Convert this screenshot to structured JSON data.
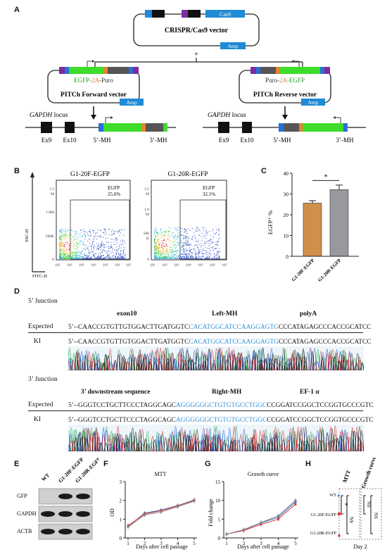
{
  "panel_labels": {
    "A": "A",
    "B": "B",
    "C": "C",
    "D": "D",
    "E": "E",
    "F": "F",
    "G": "G",
    "H": "H"
  },
  "panelA": {
    "cas9_label": "Cas9",
    "crispr_vector_label": "CRISPR/Cas9 vector",
    "amp_label": "Amp",
    "plus": "+",
    "fwd_cassette": {
      "part1": "EGFP-",
      "part2": "2A",
      "part3": "-Puro"
    },
    "rev_cassette": {
      "part1": "Puro-",
      "part2": "2A",
      "part3": "-EGFP"
    },
    "fwd_vector_label": "PITCh Forward vector",
    "rev_vector_label": "PITCh Reverse vector",
    "locus_gene": "GAPDH",
    "locus_word": " locus",
    "ex9": "Ex9",
    "ex10": "Ex10",
    "mh5": "5’-MH",
    "mh3": "3’-MH",
    "colors": {
      "cas9": "#1f8ad6",
      "green": "#3ddc2a",
      "orange": "#f07d2a",
      "purple": "#7e2aa0",
      "gray": "#555555",
      "blue_block": "#2a6fd6"
    }
  },
  "panelB": {
    "plot1_title": "G1-20F-EGFP",
    "plot2_title": "G1-20R-EGFP",
    "gate_label": "EGFP",
    "plot1_pct": "25.6%",
    "plot2_pct": "32.1%",
    "y_axis": "SSC-H",
    "x_axis": "FITC-H",
    "y_ticks": [
      "1.5",
      "M",
      "1.0M",
      "500K",
      "0"
    ],
    "y2_ticks": [
      "1.5",
      "M",
      "1.0",
      "M",
      "500",
      "K",
      "0"
    ],
    "x_ticks": [
      "10¹",
      "10²",
      "10³",
      "10⁴",
      "10⁵",
      "10⁶",
      "10⁷"
    ]
  },
  "chart_data": {
    "type": "bar",
    "categories": [
      "G1-20F-EGFP",
      "G1-20R-EGFP"
    ],
    "values": [
      25.6,
      32.1
    ],
    "errors": [
      1.2,
      2.2
    ],
    "ylabel": "EGFP⁺ %",
    "ylim": [
      0,
      40
    ],
    "yticks": [
      "0",
      "10",
      "20",
      "30",
      "40"
    ],
    "significance": "*",
    "colors": [
      "#d08f4a",
      "#98989e"
    ]
  },
  "panelD": {
    "junction5_label": "5’ Junction",
    "junction3_label": "3’ Junction",
    "expected": "Expected",
    "ki": "KI",
    "j5_headers": {
      "exon10": "exon10",
      "leftmh": "Left-MH",
      "polya": "polyA"
    },
    "j3_headers": {
      "downstream": "3’ downstream sequence",
      "rightmh": "Right-MH",
      "ef1a": "EF-1 α"
    },
    "j5_seq": {
      "pre": "5’--CAACCGTGTTGTGGACTTGATGGTC",
      "mh": "CACATGGCATCCAAGGAGTG",
      "post": "CCCATAGAGCCCACCGCATCC"
    },
    "j3_seq": {
      "pre": "5’--GGGTCCTGCTTCCCTAGGCAGC",
      "mh": "AGGGGGGCTGTGTGCCTGGC",
      "post": "CCGGATCCGGCTCCGGTGCCCGTC"
    }
  },
  "panelE": {
    "col_labels": [
      "WT",
      "G1-20F-EGFP",
      "G1-20R-EGFP"
    ],
    "row_labels": [
      "GFP",
      "GAPDH",
      "ACTB"
    ]
  },
  "panelF": {
    "title": "MTT",
    "ylabel": "OD",
    "xlabel": "Days after cell passage",
    "x": [
      1,
      2,
      3,
      4,
      5
    ],
    "ylim": [
      0,
      3
    ],
    "yticks": [
      "0",
      "1",
      "2",
      "3"
    ],
    "series": [
      {
        "values": [
          0.62,
          1.32,
          1.48,
          1.72,
          2.02
        ],
        "color": "#1e6fd0"
      },
      {
        "values": [
          0.65,
          1.28,
          1.45,
          1.7,
          2.0
        ],
        "color": "#e03030"
      },
      {
        "values": [
          0.58,
          1.22,
          1.38,
          1.66,
          1.96
        ],
        "color": "#888888"
      }
    ]
  },
  "panelG": {
    "title": "Growth curve",
    "ylabel": "Fold change",
    "xlabel": "Days after cell passage",
    "x": [
      1,
      2,
      3,
      4,
      5
    ],
    "ylim": [
      0,
      15
    ],
    "yticks": [
      "0",
      "5",
      "10",
      "15"
    ],
    "series": [
      {
        "values": [
          1.0,
          2.1,
          4.0,
          5.5,
          9.6
        ],
        "color": "#1e6fd0"
      },
      {
        "values": [
          1.0,
          2.0,
          3.6,
          5.0,
          9.0
        ],
        "color": "#e03030"
      },
      {
        "values": [
          1.0,
          2.2,
          4.1,
          5.9,
          10.0
        ],
        "color": "#888888"
      }
    ]
  },
  "panelH": {
    "col1": "MTT",
    "col2": "Growth curve",
    "rows": [
      "WT",
      "G1-20F-EGFP",
      "G1-20R-EGFP"
    ],
    "star": "*",
    "ns": "NS",
    "xlabel": "Day 2",
    "colors": [
      "#1e6fd0",
      "#e03030",
      "#e03030"
    ]
  }
}
